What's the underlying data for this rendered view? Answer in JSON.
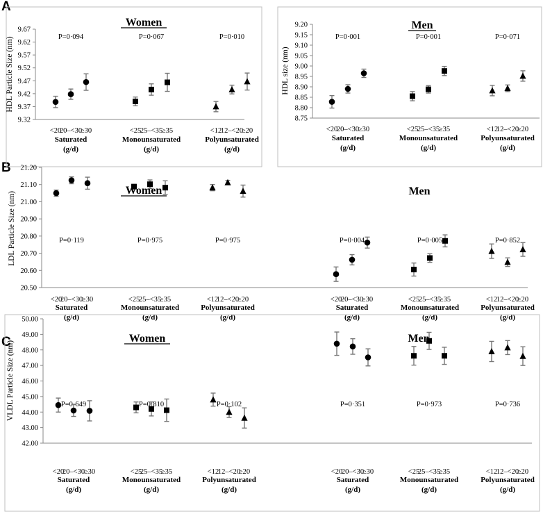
{
  "figure": {
    "panel_letters": [
      "A",
      "B",
      "C"
    ]
  },
  "chart_data": [
    {
      "type": "scatter",
      "panel": "A",
      "title": "Women",
      "ylabel": "HDL Particle Size (nm)",
      "ylim": [
        9.32,
        9.67
      ],
      "yticks": [
        "9.32",
        "9.37",
        "9.42",
        "9.47",
        "9.52",
        "9.57",
        "9.62",
        "9.67"
      ],
      "groups": [
        {
          "label": [
            "Saturated",
            "(g/d)"
          ],
          "marker": "circle",
          "p": "P=0·094",
          "categories": [
            "<20",
            "20–<30",
            "≥30"
          ],
          "values": [
            9.388,
            9.418,
            9.465
          ],
          "errors": [
            0.022,
            0.02,
            0.032
          ]
        },
        {
          "label": [
            "Monounsaturated",
            "(g/d)"
          ],
          "marker": "square",
          "p": "P=0·067",
          "categories": [
            "<25",
            "25–<35",
            "≥35"
          ],
          "values": [
            9.39,
            9.436,
            9.464
          ],
          "errors": [
            0.017,
            0.022,
            0.035
          ]
        },
        {
          "label": [
            "Polyunsaturated",
            "(g/d)"
          ],
          "marker": "triangle",
          "p": "P=0·010",
          "categories": [
            "<12",
            "12–<20",
            "≥20"
          ],
          "values": [
            9.37,
            9.436,
            9.467
          ],
          "errors": [
            0.02,
            0.017,
            0.033
          ]
        }
      ]
    },
    {
      "type": "scatter",
      "panel": "A",
      "title": "Men",
      "ylabel": "HDL size (nm)",
      "ylim": [
        8.75,
        9.2
      ],
      "yticks": [
        "8.75",
        "8.80",
        "8.85",
        "8.90",
        "8.95",
        "9.00",
        "9.05",
        "9.10",
        "9.15",
        "9.20"
      ],
      "groups": [
        {
          "label": [
            "Saturated",
            "(g/d)"
          ],
          "marker": "circle",
          "p": "P=0·001",
          "categories": [
            "<20",
            "20–<30",
            "≥30"
          ],
          "values": [
            8.828,
            8.89,
            8.965
          ],
          "errors": [
            0.03,
            0.02,
            0.02
          ]
        },
        {
          "label": [
            "Monounsaturated",
            "(g/d)"
          ],
          "marker": "square",
          "p": "P=0·001",
          "categories": [
            "<25",
            "25–<35",
            "≥35"
          ],
          "values": [
            8.855,
            8.888,
            8.976
          ],
          "errors": [
            0.022,
            0.018,
            0.022
          ]
        },
        {
          "label": [
            "Polyunsaturated",
            "(g/d)"
          ],
          "marker": "triangle",
          "p": "P=0·071",
          "categories": [
            "<12",
            "12–<20",
            "≥20"
          ],
          "values": [
            8.882,
            8.893,
            8.952
          ],
          "errors": [
            0.025,
            0.016,
            0.025
          ]
        }
      ]
    },
    {
      "type": "scatter",
      "panel": "B",
      "ylabel": "LDL Particle Size (nm)",
      "ylim": [
        20.5,
        21.2
      ],
      "yticks": [
        "20.50",
        "20.60",
        "20.70",
        "20.80",
        "20.90",
        "21.00",
        "21.10",
        "21.20"
      ],
      "sides": [
        {
          "title": "Women",
          "groups": [
            {
              "label": [
                "Saturated",
                "(g/d)"
              ],
              "marker": "circle",
              "p": "P=0·119",
              "categories": [
                "<20",
                "20–<30",
                "≥30"
              ],
              "values": [
                21.05,
                21.125,
                21.108
              ],
              "errors": [
                0.018,
                0.02,
                0.035
              ]
            },
            {
              "label": [
                "Monounsaturated",
                "(g/d)"
              ],
              "marker": "square",
              "p": "P=0·975",
              "categories": [
                "<25",
                "25–<35",
                "≥35"
              ],
              "values": [
                21.088,
                21.102,
                21.082
              ],
              "errors": [
                0.013,
                0.025,
                0.04
              ]
            },
            {
              "label": [
                "Polyunsaturated",
                "(g/d)"
              ],
              "marker": "triangle",
              "p": "P=0·975",
              "categories": [
                "<12",
                "12–<20",
                "≥20"
              ],
              "values": [
                21.082,
                21.112,
                21.062
              ],
              "errors": [
                0.018,
                0.012,
                0.035
              ]
            }
          ]
        },
        {
          "title": "Men",
          "groups": [
            {
              "label": [
                "Saturated",
                "(g/d)"
              ],
              "marker": "circle",
              "p": "P=0·004",
              "categories": [
                "<20",
                "20–<30",
                "≥30"
              ],
              "values": [
                20.578,
                20.662,
                20.762
              ],
              "errors": [
                0.042,
                0.03,
                0.032
              ]
            },
            {
              "label": [
                "Monounsaturated",
                "(g/d)"
              ],
              "marker": "square",
              "p": "P=0·005",
              "categories": [
                "<25",
                "25–<35",
                "≥35"
              ],
              "values": [
                20.605,
                20.672,
                20.772
              ],
              "errors": [
                0.038,
                0.025,
                0.035
              ]
            },
            {
              "label": [
                "Polyunsaturated",
                "(g/d)"
              ],
              "marker": "triangle",
              "p": "P=0·852",
              "categories": [
                "<12",
                "12–<20",
                "≥20"
              ],
              "values": [
                20.712,
                20.648,
                20.722
              ],
              "errors": [
                0.042,
                0.025,
                0.04
              ]
            }
          ]
        }
      ]
    },
    {
      "type": "scatter",
      "panel": "C",
      "ylabel": "VLDL Particle Size (nm)",
      "ylim": [
        42.0,
        50.0
      ],
      "yticks": [
        "42.00",
        "43.00",
        "44.00",
        "45.00",
        "46.00",
        "47.00",
        "48.00",
        "49.00",
        "50.00"
      ],
      "sides": [
        {
          "title": "Women",
          "groups": [
            {
              "label": [
                "Saturated",
                "(g/d)"
              ],
              "marker": "circle",
              "p": "P=0·649",
              "categories": [
                "<20",
                "20–<30",
                "≥30"
              ],
              "values": [
                44.45,
                44.1,
                44.08
              ],
              "errors": [
                0.45,
                0.38,
                0.65
              ]
            },
            {
              "label": [
                "Monounsaturated",
                "(g/d)"
              ],
              "marker": "square",
              "p": "P=0·810",
              "categories": [
                "<25",
                "25–<35",
                "≥35"
              ],
              "values": [
                44.3,
                44.2,
                44.12
              ],
              "errors": [
                0.35,
                0.45,
                0.72
              ]
            },
            {
              "label": [
                "Polyunsaturated",
                "(g/d)"
              ],
              "marker": "triangle",
              "p": "P=0·102",
              "categories": [
                "<12",
                "12–<20",
                "≥20"
              ],
              "values": [
                44.8,
                44.0,
                43.62
              ],
              "errors": [
                0.42,
                0.35,
                0.65
              ]
            }
          ]
        },
        {
          "title": "Men",
          "groups": [
            {
              "label": [
                "Saturated",
                "(g/d)"
              ],
              "marker": "circle",
              "p": "P=0·351",
              "categories": [
                "<20",
                "20–<30",
                "≥30"
              ],
              "values": [
                48.4,
                48.22,
                47.52
              ],
              "errors": [
                0.75,
                0.5,
                0.55
              ]
            },
            {
              "label": [
                "Monounsaturated",
                "(g/d)"
              ],
              "marker": "square",
              "p": "P=0·973",
              "categories": [
                "<25",
                "25–<35",
                "≥35"
              ],
              "values": [
                47.62,
                48.58,
                47.62
              ],
              "errors": [
                0.6,
                0.55,
                0.55
              ]
            },
            {
              "label": [
                "Polyunsaturated",
                "(g/d)"
              ],
              "marker": "triangle",
              "p": "P=0·736",
              "categories": [
                "<12",
                "12–<20",
                "≥20"
              ],
              "values": [
                47.9,
                48.15,
                47.6
              ],
              "errors": [
                0.65,
                0.45,
                0.6
              ]
            }
          ]
        }
      ]
    }
  ]
}
